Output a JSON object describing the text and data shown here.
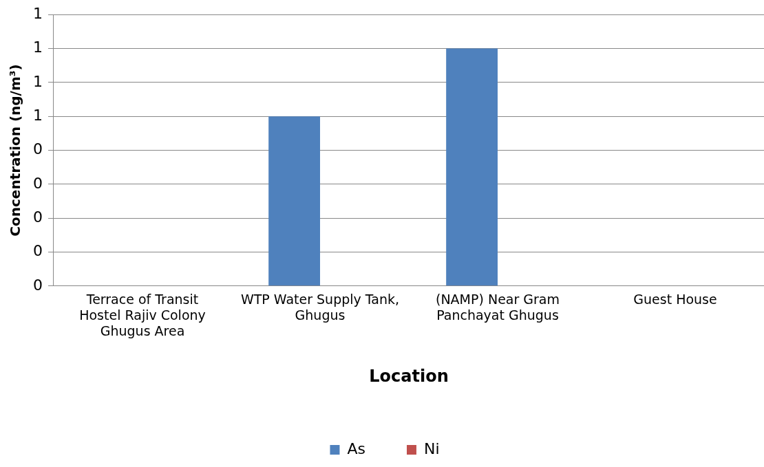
{
  "chart_data": {
    "type": "bar",
    "xlabel": "Location",
    "ylabel": "Concentration (ng/m³)",
    "categories": [
      "Terrace of Transit Hostel Rajiv Colony Ghugus Area",
      "WTP Water Supply Tank, Ghugus",
      "(NAMP) Near Gram Panchayat Ghugus",
      "Guest House"
    ],
    "series": [
      {
        "name": "As",
        "color": "#4f81bd",
        "values": [
          0,
          0.5,
          0.7,
          0
        ]
      },
      {
        "name": "Ni",
        "color": "#c0504d",
        "values": [
          0,
          0,
          0,
          0
        ]
      }
    ],
    "ylim": [
      0,
      0.8
    ],
    "yticks": [
      {
        "value": 0,
        "label": "0"
      },
      {
        "value": 0.1,
        "label": "0"
      },
      {
        "value": 0.2,
        "label": "0"
      },
      {
        "value": 0.3,
        "label": "0"
      },
      {
        "value": 0.4,
        "label": "0"
      },
      {
        "value": 0.5,
        "label": "1"
      },
      {
        "value": 0.6,
        "label": "1"
      },
      {
        "value": 0.7,
        "label": "1"
      },
      {
        "value": 0.8,
        "label": "1"
      }
    ],
    "grid": "y",
    "legend": "bottom"
  }
}
